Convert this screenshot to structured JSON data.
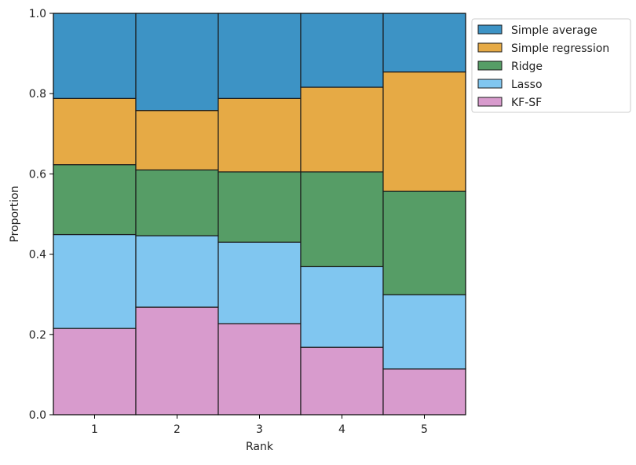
{
  "chart_data": {
    "type": "bar",
    "stacked": true,
    "normalized": true,
    "title": "",
    "xlabel": "Rank",
    "ylabel": "Proportion",
    "categories": [
      "1",
      "2",
      "3",
      "4",
      "5"
    ],
    "ylim": [
      0,
      1
    ],
    "yticks": [
      "0.0",
      "0.2",
      "0.4",
      "0.6",
      "0.8",
      "1.0"
    ],
    "grid": false,
    "legend_position": "outside-top-right",
    "series": [
      {
        "name": "KF-SF",
        "color": "#d89bcd",
        "values": [
          0.215,
          0.268,
          0.227,
          0.168,
          0.114
        ]
      },
      {
        "name": "Lasso",
        "color": "#80c6f0",
        "values": [
          0.234,
          0.178,
          0.203,
          0.201,
          0.185
        ]
      },
      {
        "name": "Ridge",
        "color": "#569d66",
        "values": [
          0.174,
          0.164,
          0.175,
          0.236,
          0.258
        ]
      },
      {
        "name": "Simple regression",
        "color": "#e6aa45",
        "values": [
          0.165,
          0.148,
          0.183,
          0.211,
          0.297
        ]
      },
      {
        "name": "Simple average",
        "color": "#3d93c5",
        "values": [
          0.212,
          0.242,
          0.212,
          0.184,
          0.146
        ]
      }
    ],
    "legend_order": [
      "Simple average",
      "Simple regression",
      "Ridge",
      "Lasso",
      "KF-SF"
    ]
  }
}
